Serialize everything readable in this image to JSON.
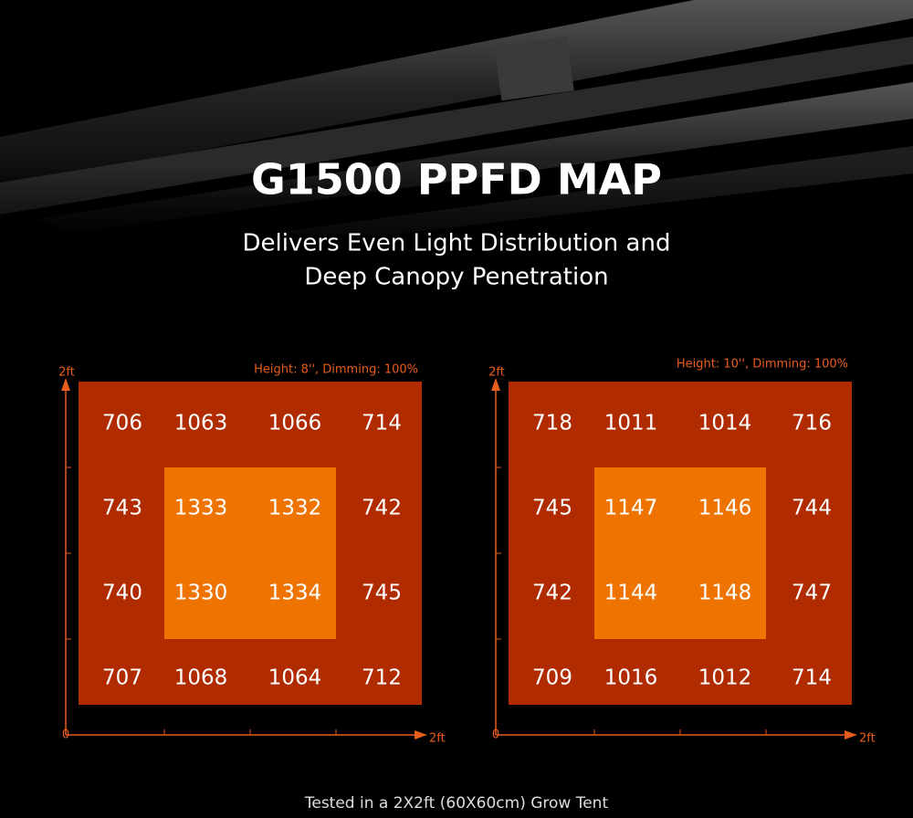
{
  "header": {
    "title": "G1500 PPFD MAP",
    "subtitle": [
      "Delivers Even Light Distribution and",
      "Deep Canopy Penetration"
    ]
  },
  "maps": [
    {
      "settings": "Height: 8'', Dimming: 100%",
      "y_axis_top": "2ft",
      "origin": "0",
      "x_axis_end": "2ft",
      "rows": [
        [
          706,
          1063,
          1066,
          714
        ],
        [
          743,
          1333,
          1332,
          742
        ],
        [
          740,
          1330,
          1334,
          745
        ],
        [
          707,
          1068,
          1064,
          712
        ]
      ]
    },
    {
      "settings": "Height: 10'', Dimming: 100%",
      "y_axis_top": "2ft",
      "origin": "0",
      "x_axis_end": "2ft",
      "rows": [
        [
          718,
          1011,
          1014,
          716
        ],
        [
          745,
          1147,
          1146,
          744
        ],
        [
          742,
          1144,
          1148,
          747
        ],
        [
          709,
          1016,
          1012,
          714
        ]
      ]
    }
  ],
  "footer": "Tested in a 2X2ft (60X60cm) Grow Tent"
}
